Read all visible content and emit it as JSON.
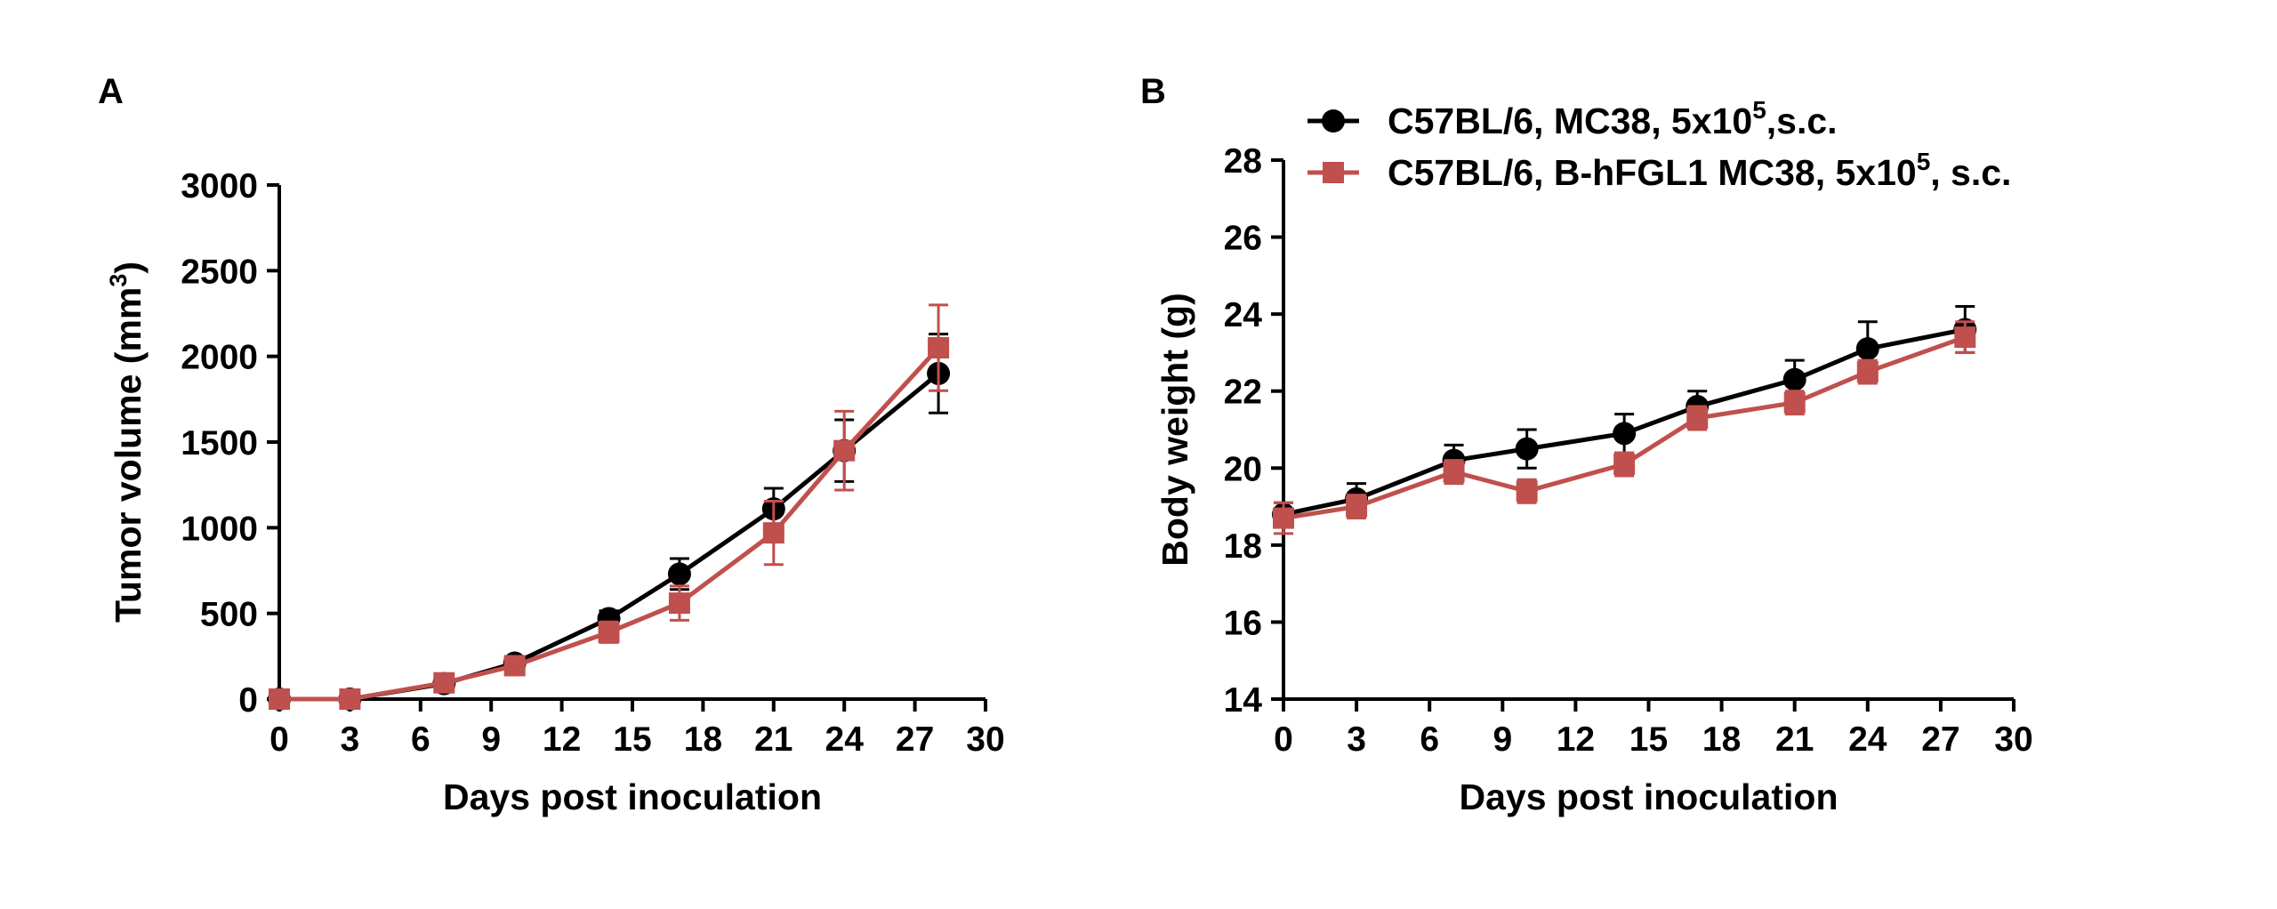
{
  "chart_data": [
    {
      "panel": "A",
      "type": "line",
      "xlabel": "Days post inoculation",
      "ylabel": "Tumor volume (mm",
      "ylabel_sup": "3",
      "ylabel_end": ")",
      "xlim": [
        0,
        30
      ],
      "ylim": [
        0,
        3000
      ],
      "xticks": [
        0,
        3,
        6,
        9,
        12,
        15,
        18,
        21,
        24,
        27,
        30
      ],
      "yticks": [
        0,
        500,
        1000,
        1500,
        2000,
        2500,
        3000
      ],
      "grid": false,
      "series": [
        {
          "color": "#000000",
          "marker": "circle",
          "x": [
            0,
            3,
            7,
            10,
            14,
            17,
            21,
            24,
            28
          ],
          "y": [
            0,
            0,
            90,
            210,
            470,
            730,
            1110,
            1450,
            1900
          ],
          "err": [
            0,
            0,
            20,
            30,
            45,
            90,
            120,
            180,
            230
          ]
        },
        {
          "color": "#c0504d",
          "marker": "square",
          "x": [
            0,
            3,
            7,
            10,
            14,
            17,
            21,
            24,
            28
          ],
          "y": [
            0,
            0,
            95,
            195,
            390,
            560,
            970,
            1450,
            2050
          ],
          "err": [
            0,
            0,
            20,
            30,
            60,
            100,
            185,
            230,
            250
          ]
        }
      ]
    },
    {
      "panel": "B",
      "type": "line",
      "xlabel": "Days post inoculation",
      "ylabel": "Body weight (g)",
      "xlim": [
        0,
        30
      ],
      "ylim": [
        14,
        28
      ],
      "xticks": [
        0,
        3,
        6,
        9,
        12,
        15,
        18,
        21,
        24,
        27,
        30
      ],
      "yticks": [
        14,
        16,
        18,
        20,
        22,
        24,
        26,
        28
      ],
      "grid": false,
      "legend_position": "top",
      "series": [
        {
          "name": "C57BL/6, MC38, 5x10",
          "name_sup": "5",
          "name_end": ",s.c.",
          "color": "#000000",
          "marker": "circle",
          "x": [
            0,
            3,
            7,
            10,
            14,
            17,
            21,
            24,
            28
          ],
          "y": [
            18.8,
            19.2,
            20.2,
            20.5,
            20.9,
            21.6,
            22.3,
            23.1,
            23.6
          ],
          "err": [
            0.3,
            0.4,
            0.4,
            0.5,
            0.5,
            0.4,
            0.5,
            0.7,
            0.6
          ]
        },
        {
          "name": "C57BL/6, B-hFGL1 MC38, 5x10",
          "name_sup": "5",
          "name_end": ", s.c.",
          "color": "#c0504d",
          "marker": "square",
          "x": [
            0,
            3,
            7,
            10,
            14,
            17,
            21,
            24,
            28
          ],
          "y": [
            18.7,
            19.0,
            19.9,
            19.4,
            20.1,
            21.3,
            21.7,
            22.5,
            23.4
          ],
          "err": [
            0.4,
            0.3,
            0.3,
            0.3,
            0.3,
            0.3,
            0.3,
            0.3,
            0.4
          ]
        }
      ]
    }
  ]
}
